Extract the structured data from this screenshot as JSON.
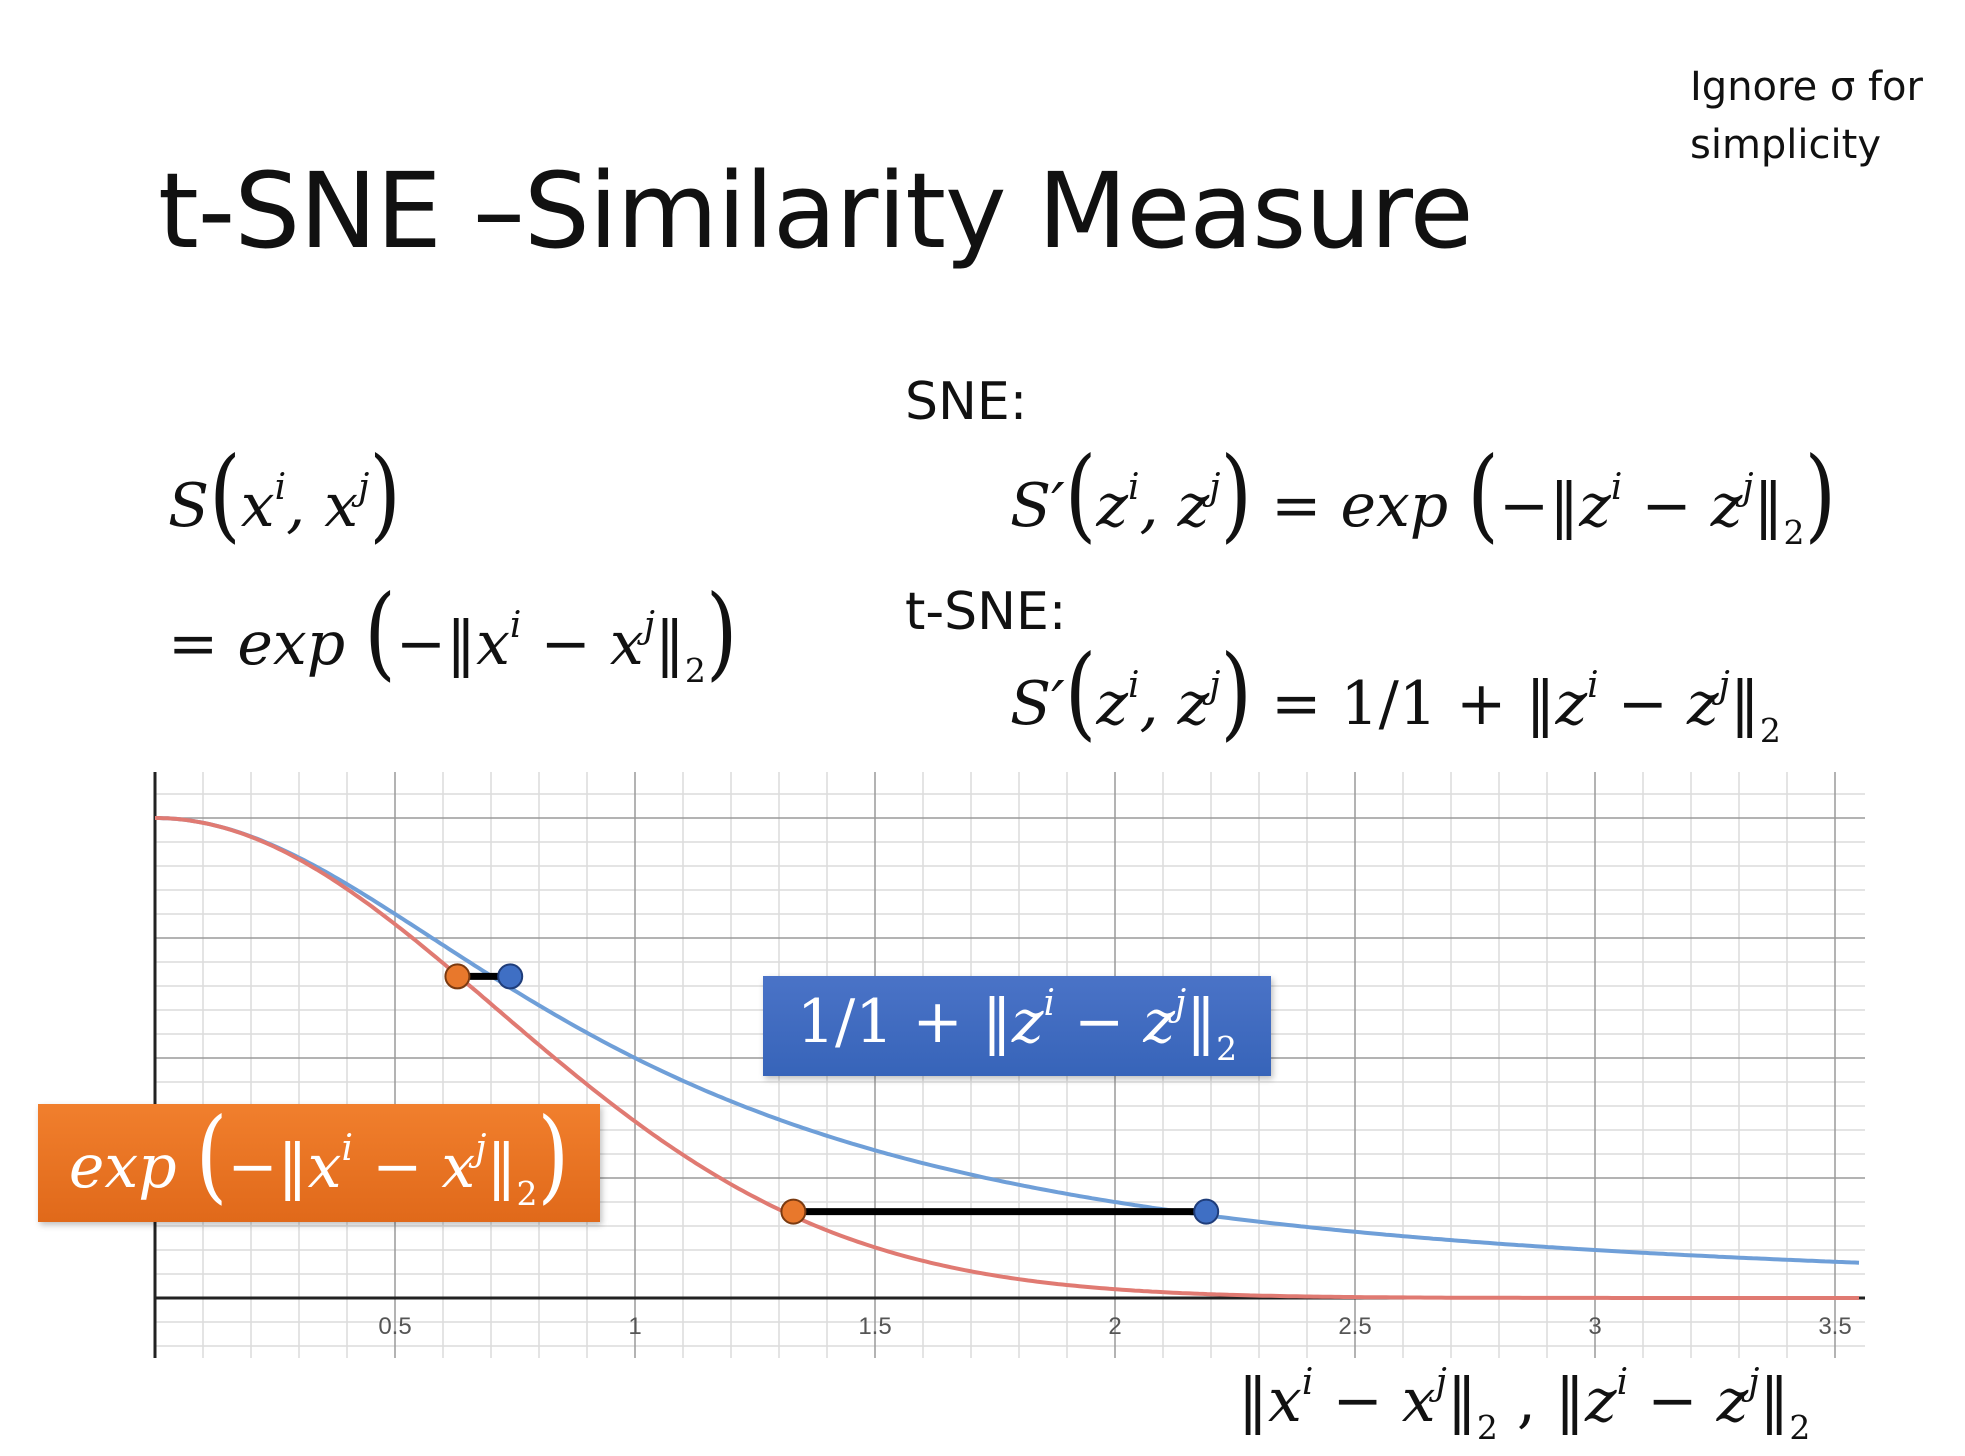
{
  "slide": {
    "title": "t-SNE –Similarity Measure",
    "note_line1": "Ignore σ for",
    "note_line2": "simplicity",
    "sne_label": "SNE:",
    "tsne_label": "t-SNE:",
    "left_formula_line1": "S(xⁱ, xʲ)",
    "left_formula_line2": "= exp(−‖xⁱ − xʲ‖₂)",
    "sne_formula": "S′(zⁱ, zʲ) = exp(−‖zⁱ − zʲ‖₂)",
    "tsne_formula": "S′(zⁱ, zʲ) = 1/1 + ‖zⁱ − zʲ‖₂",
    "xaxis_label": "‖xⁱ − xʲ‖₂ , ‖zⁱ − zʲ‖₂"
  },
  "chart_data": {
    "type": "line",
    "xlim": [
      0,
      3.55
    ],
    "ylim": [
      -0.12,
      1.15
    ],
    "grid": true,
    "x_ticks": [
      "0.5",
      "1",
      "1.5",
      "2",
      "2.5",
      "3",
      "3.5"
    ],
    "x_tick_values": [
      0.5,
      1,
      1.5,
      2,
      2.5,
      3,
      3.5
    ],
    "series": [
      {
        "name": "1/1 + ‖zⁱ − zʲ‖₂",
        "formula": "1/(1+x^2)",
        "color": "#6f9fd8"
      },
      {
        "name": "exp(−‖xⁱ − xʲ‖₂)",
        "formula": "exp(-x^2)",
        "color": "#e07a72"
      }
    ],
    "annotations": [
      {
        "type": "segment",
        "y": 0.67,
        "x_exp": 0.63,
        "x_t": 0.74,
        "colors": [
          "#e8782c",
          "#3f6fc4"
        ]
      },
      {
        "type": "segment",
        "y": 0.18,
        "x_exp": 1.33,
        "x_t": 2.19,
        "colors": [
          "#e8782c",
          "#3f6fc4"
        ]
      }
    ],
    "colors": {
      "blue_curve": "#6f9fd8",
      "red_curve": "#e07a72",
      "blue_badge": "#3f6fc4",
      "orange_badge": "#e8782c"
    }
  }
}
